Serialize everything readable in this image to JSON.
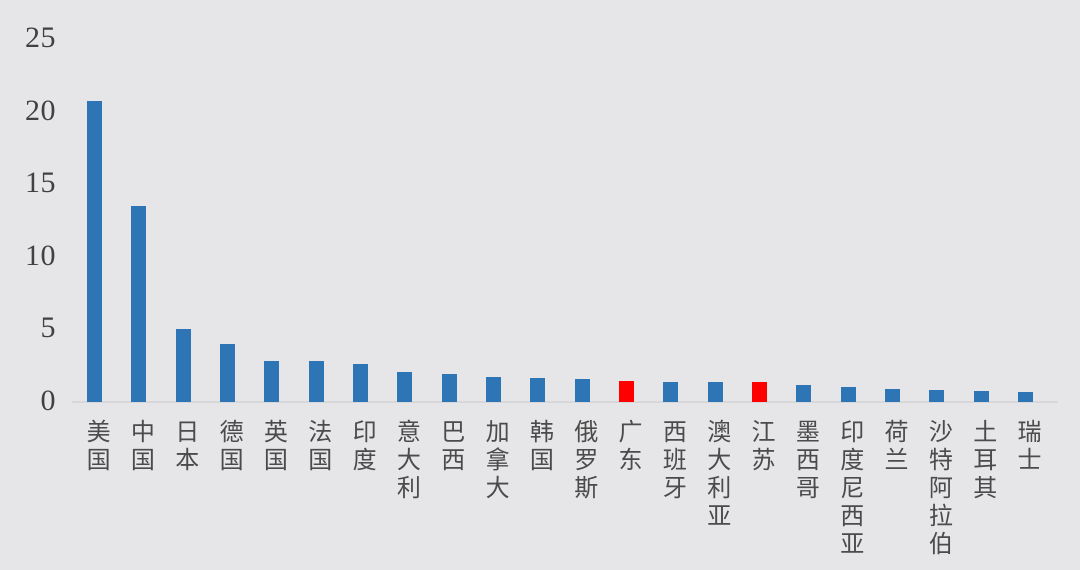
{
  "page": {
    "background_color": "#E6E5E8"
  },
  "chart_data": {
    "type": "bar",
    "title": "",
    "xlabel": "",
    "ylabel": "",
    "categories": [
      "美国",
      "中国",
      "日本",
      "德国",
      "英国",
      "法国",
      "印度",
      "意大利",
      "巴西",
      "加拿大",
      "韩国",
      "俄罗斯",
      "广东",
      "西班牙",
      "澳大利亚",
      "江苏",
      "墨西哥",
      "印度尼西亚",
      "荷兰",
      "沙特阿拉伯",
      "土耳其",
      "瑞士"
    ],
    "values": [
      20.7,
      13.5,
      5.0,
      4.0,
      2.85,
      2.8,
      2.65,
      2.05,
      1.9,
      1.7,
      1.65,
      1.55,
      1.45,
      1.4,
      1.4,
      1.35,
      1.2,
      1.0,
      0.9,
      0.8,
      0.75,
      0.7
    ],
    "highlighted_categories": [
      "广东",
      "江苏"
    ],
    "bar_color": "#2E75B6",
    "highlight_color": "#FF0000",
    "tick_text_color": "#414141",
    "label_text_color": "#4B4B4B",
    "axis_line_color": "#D8D7DA",
    "ylim": [
      0,
      25
    ],
    "yticks": [
      0,
      5,
      10,
      15,
      20,
      25
    ],
    "grid": false,
    "legend": "none"
  }
}
